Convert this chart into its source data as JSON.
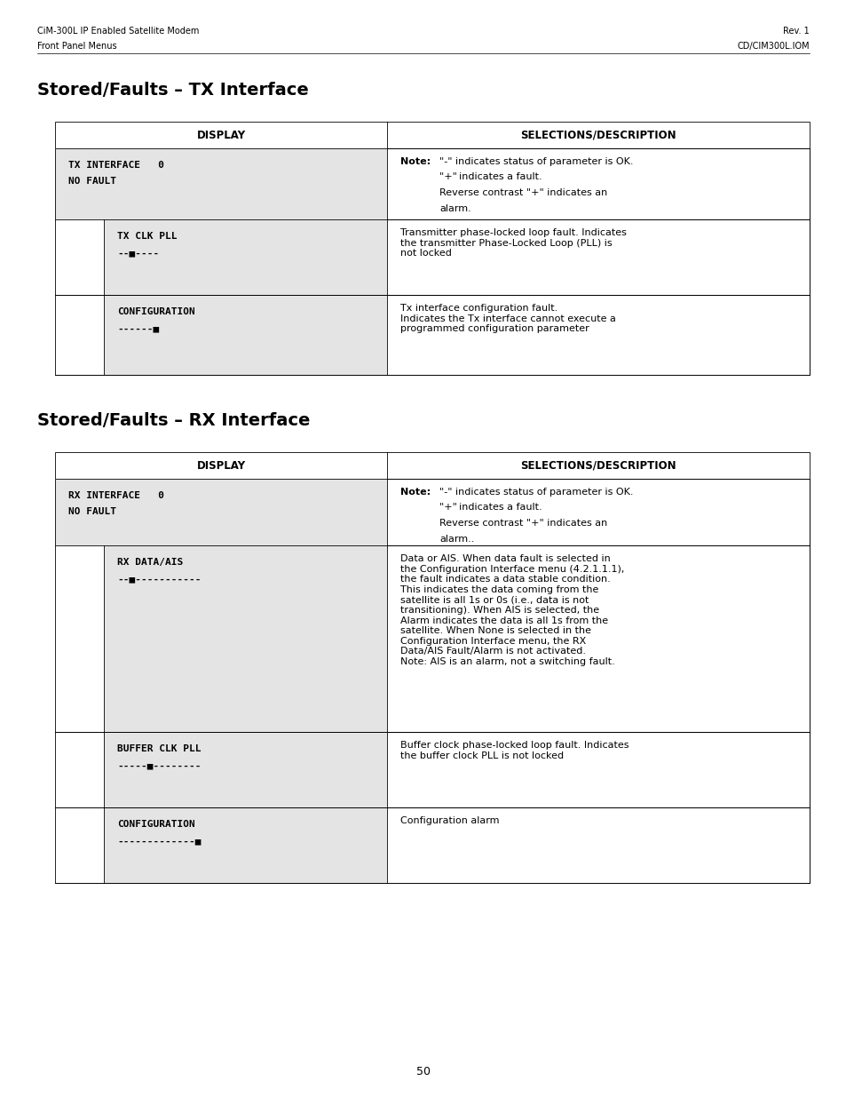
{
  "page_width": 9.54,
  "page_height": 12.35,
  "bg_color": "#ffffff",
  "header_left_line1": "CiM-300L IP Enabled Satellite Modem",
  "header_left_line2": "Front Panel Menus",
  "header_right_line1": "Rev. 1",
  "header_right_line2": "CD/CIM300L.IOM",
  "section1_title": "Stored/Faults – TX Interface",
  "section2_title": "Stored/Faults – RX Interface",
  "footer_text": "50",
  "tx_col1_header": "DISPLAY",
  "tx_col2_header": "SELECTIONS/DESCRIPTION",
  "rx_col1_header": "DISPLAY",
  "rx_col2_header": "SELECTIONS/DESCRIPTION",
  "display_cell_bg": "#e4e4e4",
  "white": "#ffffff",
  "black": "#000000"
}
